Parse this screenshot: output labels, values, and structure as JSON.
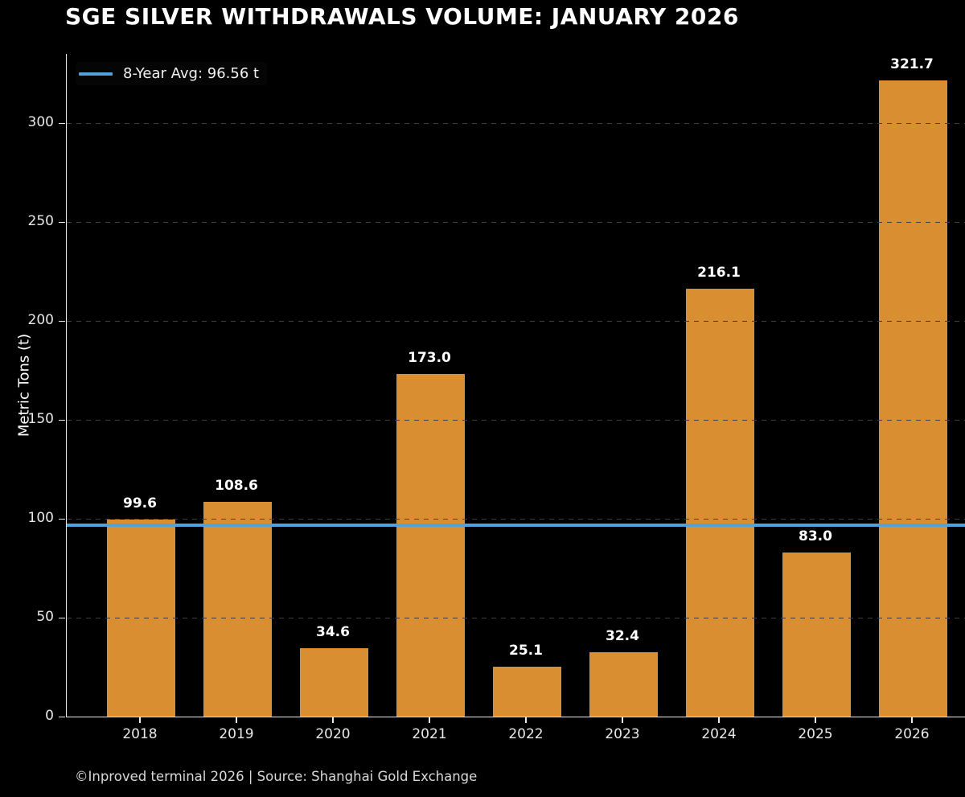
{
  "chart_data": {
    "type": "bar",
    "title": "SGE SILVER WITHDRAWALS VOLUME: JANUARY 2026",
    "categories": [
      "2018",
      "2019",
      "2020",
      "2021",
      "2022",
      "2023",
      "2024",
      "2025",
      "2026"
    ],
    "values": [
      99.6,
      108.6,
      34.6,
      173.0,
      25.1,
      32.4,
      216.1,
      83.0,
      321.7
    ],
    "value_labels": [
      "99.6",
      "108.6",
      "34.6",
      "173.0",
      "25.1",
      "32.4",
      "216.1",
      "83.0",
      "321.7"
    ],
    "xlabel": "",
    "ylabel": "Metric Tons (t)",
    "ylim": [
      0,
      335
    ],
    "yticks": [
      0,
      50,
      100,
      150,
      200,
      250,
      300
    ],
    "grid": "horizontal-dashed",
    "legend": {
      "position": "upper-left",
      "entries": [
        {
          "label": "8-Year Avg: 96.56 t",
          "swatch": "line",
          "color": "#4FA3DA"
        }
      ]
    },
    "avg_line": {
      "value": 96.56,
      "label": "8-Year Avg: 96.56 t"
    },
    "footer": "©Inproved terminal 2026 | Source: Shanghai Gold Exchange",
    "colors": {
      "background": "#000000",
      "bar": "#D98E32",
      "avg_line": "#4FA3DA",
      "grid": "#3F3F3F",
      "axis": "#E8E8E8",
      "title_text": "#FFFFFF",
      "value_label_text": "#FFFFFF",
      "tick_text": "#E8E8E8",
      "footer_text": "#D8D8D8"
    }
  }
}
